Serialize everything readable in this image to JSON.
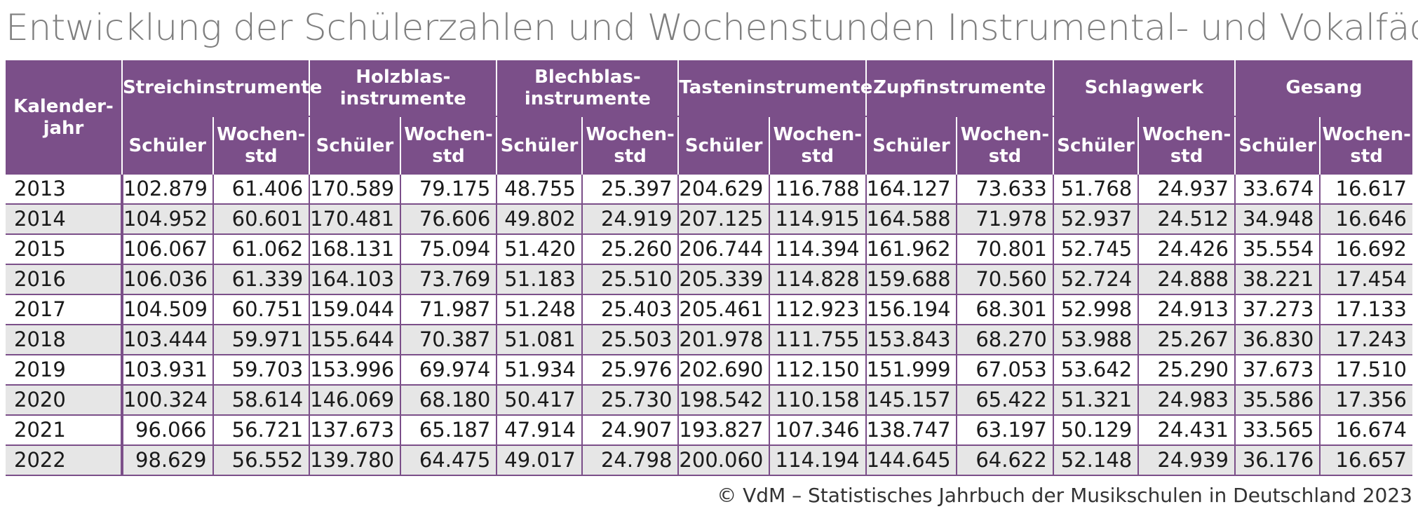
{
  "title": "Entwicklung der Schülerzahlen und Wochenstunden Instrumental- und Vokalfächer",
  "table": {
    "year_header": "Kalender-\njahr",
    "groups": [
      "Streichinstrumente",
      "Holzblas-\ninstrumente",
      "Blechblas-\ninstrumente",
      "Tasteninstrumente",
      "Zupfinstrumente",
      "Schlagwerk",
      "Gesang"
    ],
    "sub_students": "Schüler",
    "sub_hours": "Wochen-\nstd",
    "rows": [
      {
        "year": "2013",
        "values": [
          "102.879",
          "61.406",
          "170.589",
          "79.175",
          "48.755",
          "25.397",
          "204.629",
          "116.788",
          "164.127",
          "73.633",
          "51.768",
          "24.937",
          "33.674",
          "16.617"
        ]
      },
      {
        "year": "2014",
        "values": [
          "104.952",
          "60.601",
          "170.481",
          "76.606",
          "49.802",
          "24.919",
          "207.125",
          "114.915",
          "164.588",
          "71.978",
          "52.937",
          "24.512",
          "34.948",
          "16.646"
        ]
      },
      {
        "year": "2015",
        "values": [
          "106.067",
          "61.062",
          "168.131",
          "75.094",
          "51.420",
          "25.260",
          "206.744",
          "114.394",
          "161.962",
          "70.801",
          "52.745",
          "24.426",
          "35.554",
          "16.692"
        ]
      },
      {
        "year": "2016",
        "values": [
          "106.036",
          "61.339",
          "164.103",
          "73.769",
          "51.183",
          "25.510",
          "205.339",
          "114.828",
          "159.688",
          "70.560",
          "52.724",
          "24.888",
          "38.221",
          "17.454"
        ]
      },
      {
        "year": "2017",
        "values": [
          "104.509",
          "60.751",
          "159.044",
          "71.987",
          "51.248",
          "25.403",
          "205.461",
          "112.923",
          "156.194",
          "68.301",
          "52.998",
          "24.913",
          "37.273",
          "17.133"
        ]
      },
      {
        "year": "2018",
        "values": [
          "103.444",
          "59.971",
          "155.644",
          "70.387",
          "51.081",
          "25.503",
          "201.978",
          "111.755",
          "153.843",
          "68.270",
          "53.988",
          "25.267",
          "36.830",
          "17.243"
        ]
      },
      {
        "year": "2019",
        "values": [
          "103.931",
          "59.703",
          "153.996",
          "69.974",
          "51.934",
          "25.976",
          "202.690",
          "112.150",
          "151.999",
          "67.053",
          "53.642",
          "25.290",
          "37.673",
          "17.510"
        ]
      },
      {
        "year": "2020",
        "values": [
          "100.324",
          "58.614",
          "146.069",
          "68.180",
          "50.417",
          "25.730",
          "198.542",
          "110.158",
          "145.157",
          "65.422",
          "51.321",
          "24.983",
          "35.586",
          "17.356"
        ]
      },
      {
        "year": "2021",
        "values": [
          "96.066",
          "56.721",
          "137.673",
          "65.187",
          "47.914",
          "24.907",
          "193.827",
          "107.346",
          "138.747",
          "63.197",
          "50.129",
          "24.431",
          "33.565",
          "16.674"
        ]
      },
      {
        "year": "2022",
        "values": [
          "98.629",
          "56.552",
          "139.780",
          "64.475",
          "49.017",
          "24.798",
          "200.060",
          "114.194",
          "144.645",
          "64.622",
          "52.148",
          "24.939",
          "36.176",
          "16.657"
        ]
      }
    ]
  },
  "footer": "© VdM – Statistisches Jahrbuch der Musikschulen in Deutschland 2023",
  "colors": {
    "header_bg": "#7b4f89",
    "header_text": "#ffffff",
    "stripe": "#e6e6e6",
    "title": "#7f7f7f"
  }
}
